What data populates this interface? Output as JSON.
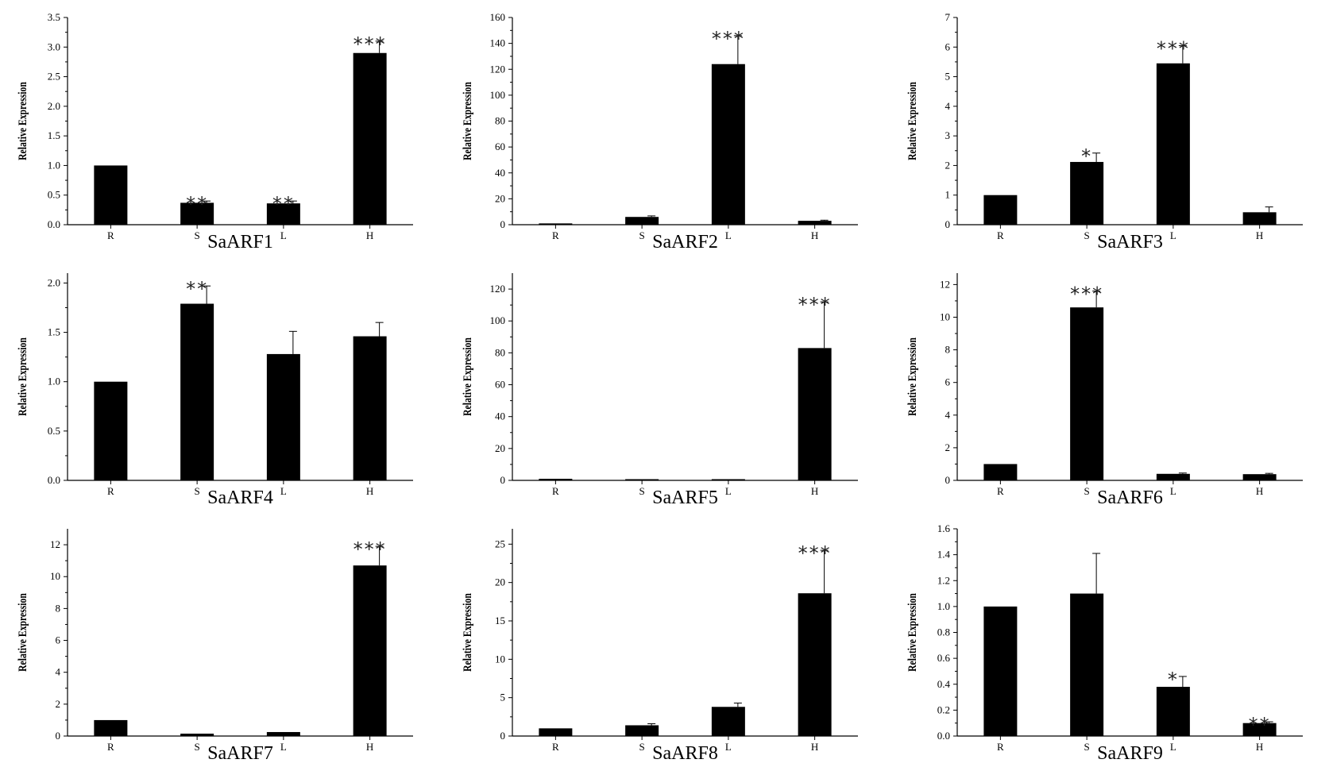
{
  "chart_data": [
    {
      "type": "bar",
      "title": "SaARF1",
      "ylabel": "Relative Expression",
      "categories": [
        "R",
        "S",
        "L",
        "H"
      ],
      "values": [
        1.0,
        0.37,
        0.36,
        2.9
      ],
      "errors": [
        0,
        0.03,
        0.04,
        0.2
      ],
      "significance": [
        "",
        "**",
        "**",
        "***"
      ],
      "ylim": [
        0,
        3.5
      ],
      "yticks": [
        "0.0",
        "0.5",
        "1.0",
        "1.5",
        "2.0",
        "2.5",
        "3.0",
        "3.5"
      ],
      "ytick_values": [
        0,
        0.5,
        1.0,
        1.5,
        2.0,
        2.5,
        3.0,
        3.5
      ]
    },
    {
      "type": "bar",
      "title": "SaARF2",
      "ylabel": "Relative Expression",
      "categories": [
        "R",
        "S",
        "L",
        "H"
      ],
      "values": [
        1,
        6,
        124,
        3
      ],
      "errors": [
        0,
        0.8,
        22,
        0.5
      ],
      "significance": [
        "",
        "",
        "***",
        ""
      ],
      "ylim": [
        0,
        160
      ],
      "yticks": [
        "0",
        "20",
        "40",
        "60",
        "80",
        "100",
        "120",
        "140",
        "160"
      ],
      "ytick_values": [
        0,
        20,
        40,
        60,
        80,
        100,
        120,
        140,
        160
      ]
    },
    {
      "type": "bar",
      "title": "SaARF3",
      "ylabel": "Relative Expression",
      "categories": [
        "R",
        "S",
        "L",
        "H"
      ],
      "values": [
        1.0,
        2.12,
        5.45,
        0.42
      ],
      "errors": [
        0,
        0.3,
        0.6,
        0.18
      ],
      "significance": [
        "",
        "*",
        "***",
        ""
      ],
      "ylim": [
        0,
        7
      ],
      "yticks": [
        "0",
        "1",
        "2",
        "3",
        "4",
        "5",
        "6",
        "7"
      ],
      "ytick_values": [
        0,
        1,
        2,
        3,
        4,
        5,
        6,
        7
      ]
    },
    {
      "type": "bar",
      "title": "SaARF4",
      "ylabel": "Relative Expression",
      "categories": [
        "R",
        "S",
        "L",
        "H"
      ],
      "values": [
        1.0,
        1.79,
        1.28,
        1.46
      ],
      "errors": [
        0,
        0.18,
        0.23,
        0.14
      ],
      "significance": [
        "",
        "**",
        "",
        ""
      ],
      "ylim": [
        0,
        2.1
      ],
      "yticks": [
        "0.0",
        "0.5",
        "1.0",
        "1.5",
        "2.0"
      ],
      "ytick_values": [
        0,
        0.5,
        1.0,
        1.5,
        2.0
      ]
    },
    {
      "type": "bar",
      "title": "SaARF5",
      "ylabel": "Relative Expression",
      "categories": [
        "R",
        "S",
        "L",
        "H"
      ],
      "values": [
        1,
        0.2,
        0.5,
        83
      ],
      "errors": [
        0,
        0,
        0,
        29
      ],
      "significance": [
        "",
        "",
        "",
        "***"
      ],
      "ylim": [
        0,
        130
      ],
      "yticks": [
        "0",
        "20",
        "40",
        "60",
        "80",
        "100",
        "120"
      ],
      "ytick_values": [
        0,
        20,
        40,
        60,
        80,
        100,
        120
      ]
    },
    {
      "type": "bar",
      "title": "SaARF6",
      "ylabel": "Relative Expression",
      "categories": [
        "R",
        "S",
        "L",
        "H"
      ],
      "values": [
        1.0,
        10.6,
        0.4,
        0.38
      ],
      "errors": [
        0,
        1.0,
        0.05,
        0.05
      ],
      "significance": [
        "",
        "***",
        "",
        ""
      ],
      "ylim": [
        0,
        12.7
      ],
      "yticks": [
        "0",
        "2",
        "4",
        "6",
        "8",
        "10",
        "12"
      ],
      "ytick_values": [
        0,
        2,
        4,
        6,
        8,
        10,
        12
      ]
    },
    {
      "type": "bar",
      "title": "SaARF7",
      "ylabel": "Relative Expression",
      "categories": [
        "R",
        "S",
        "L",
        "H"
      ],
      "values": [
        1.0,
        0.15,
        0.25,
        10.7
      ],
      "errors": [
        0,
        0,
        0,
        1.2
      ],
      "significance": [
        "",
        "",
        "",
        "***"
      ],
      "ylim": [
        0,
        13
      ],
      "yticks": [
        "0",
        "2",
        "4",
        "6",
        "8",
        "10",
        "12"
      ],
      "ytick_values": [
        0,
        2,
        4,
        6,
        8,
        10,
        12
      ]
    },
    {
      "type": "bar",
      "title": "SaARF8",
      "ylabel": "Relative Expression",
      "categories": [
        "R",
        "S",
        "L",
        "H"
      ],
      "values": [
        1.0,
        1.4,
        3.8,
        18.6
      ],
      "errors": [
        0,
        0.2,
        0.5,
        5.6
      ],
      "significance": [
        "",
        "",
        "",
        "***"
      ],
      "ylim": [
        0,
        27
      ],
      "yticks": [
        "0",
        "5",
        "10",
        "15",
        "20",
        "25"
      ],
      "ytick_values": [
        0,
        5,
        10,
        15,
        20,
        25
      ]
    },
    {
      "type": "bar",
      "title": "SaARF9",
      "ylabel": "Relative Expression",
      "categories": [
        "R",
        "S",
        "L",
        "H"
      ],
      "values": [
        1.0,
        1.1,
        0.38,
        0.1
      ],
      "errors": [
        0,
        0.31,
        0.08,
        0.01
      ],
      "significance": [
        "",
        "",
        "*",
        "**"
      ],
      "ylim": [
        0,
        1.6
      ],
      "yticks": [
        "0.0",
        "0.2",
        "0.4",
        "0.6",
        "0.8",
        "1.0",
        "1.2",
        "1.4",
        "1.6"
      ],
      "ytick_values": [
        0,
        0.2,
        0.4,
        0.6,
        0.8,
        1.0,
        1.2,
        1.4,
        1.6
      ]
    }
  ]
}
